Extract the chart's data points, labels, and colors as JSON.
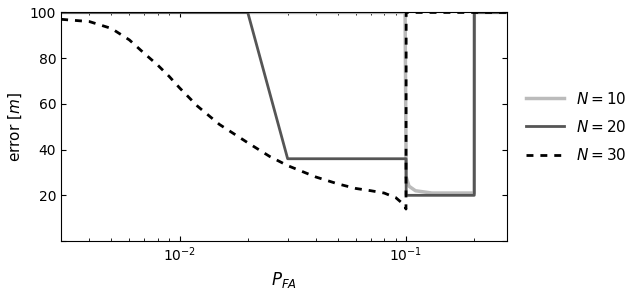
{
  "xlabel": "$P_{FA}$",
  "ylabel": "error $[m]$",
  "ylim": [
    0,
    100
  ],
  "xlim": [
    0.003,
    0.28
  ],
  "legend": [
    {
      "label": "$N = 10$",
      "color": "#bbbbbb",
      "linestyle": "solid",
      "linewidth": 2.5
    },
    {
      "label": "$N = 20$",
      "color": "#555555",
      "linestyle": "solid",
      "linewidth": 2.0
    },
    {
      "label": "$N = 30$",
      "color": "#000000",
      "linestyle": "dotted",
      "linewidth": 2.0
    }
  ],
  "N10_x": [
    0.003,
    0.0035,
    0.004,
    0.005,
    0.006,
    0.007,
    0.008,
    0.009,
    0.01,
    0.015,
    0.02,
    0.03,
    0.04,
    0.05,
    0.06,
    0.07,
    0.08,
    0.09,
    0.095,
    0.099,
    0.1001,
    0.103,
    0.11,
    0.13,
    0.15,
    0.17,
    0.19,
    0.2,
    0.2001,
    0.21,
    0.25,
    0.28
  ],
  "N10_y": [
    100,
    100,
    100,
    100,
    100,
    100,
    100,
    100,
    100,
    100,
    100,
    100,
    100,
    100,
    100,
    100,
    100,
    100,
    100,
    100,
    28,
    24,
    22,
    21,
    21,
    21,
    21,
    21,
    100,
    100,
    100,
    100
  ],
  "N20_x": [
    0.003,
    0.004,
    0.005,
    0.006,
    0.007,
    0.008,
    0.009,
    0.01,
    0.0101,
    0.015,
    0.02,
    0.03,
    0.04,
    0.05,
    0.06,
    0.07,
    0.08,
    0.09,
    0.095,
    0.098,
    0.1,
    0.1001,
    0.105,
    0.11,
    0.12,
    0.13,
    0.14,
    0.15,
    0.16,
    0.17,
    0.18,
    0.19,
    0.2,
    0.2001,
    0.21,
    0.25,
    0.28
  ],
  "N20_y": [
    100,
    100,
    100,
    100,
    100,
    100,
    100,
    100,
    100,
    100,
    100,
    36,
    36,
    36,
    36,
    36,
    36,
    36,
    36,
    36,
    36,
    20,
    20,
    20,
    20,
    20,
    20,
    20,
    20,
    20,
    20,
    20,
    20,
    100,
    100,
    100,
    100
  ],
  "N30_x": [
    0.003,
    0.004,
    0.005,
    0.006,
    0.007,
    0.008,
    0.009,
    0.01,
    0.012,
    0.015,
    0.02,
    0.025,
    0.03,
    0.04,
    0.05,
    0.06,
    0.07,
    0.08,
    0.09,
    0.095,
    0.098,
    0.0999,
    0.1001,
    0.11,
    0.15,
    0.28
  ],
  "N30_y": [
    97,
    96,
    93,
    88,
    82,
    77,
    72,
    67,
    59,
    51,
    43,
    37,
    33,
    28,
    25,
    23,
    22,
    21,
    19,
    17,
    16,
    14,
    100,
    100,
    100,
    100
  ],
  "background_color": "#ffffff"
}
